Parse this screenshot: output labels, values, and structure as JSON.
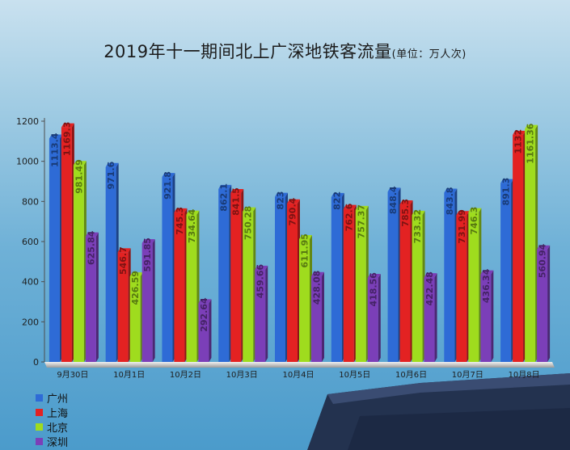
{
  "chart_data": {
    "type": "bar",
    "title": "2019年十一期间北上广深地铁客流量",
    "subtitle": "(单位：万人次)",
    "categories": [
      "9月30日",
      "10月1日",
      "10月2日",
      "10月3日",
      "10月4日",
      "10月5日",
      "10月6日",
      "10月7日",
      "10月8日"
    ],
    "series": [
      {
        "name": "广州",
        "color": "#2e6bd6",
        "values": [
          1113.4,
          971.6,
          921.8,
          862.1,
          823,
          822,
          848.4,
          843.8,
          891.3
        ],
        "labels": [
          "1113.4",
          "971.6",
          "921.8",
          "862.1",
          "823",
          "822",
          "848.4",
          "843.8",
          "891.3"
        ]
      },
      {
        "name": "上海",
        "color": "#e32222",
        "values": [
          1169.3,
          546.7,
          745.3,
          841.5,
          790.4,
          762.6,
          785.3,
          731.99,
          1132
        ],
        "labels": [
          "1169.3",
          "546.7",
          "745.3",
          "841.5",
          "790.4",
          "762.6",
          "785.3",
          "731.99",
          "1132"
        ]
      },
      {
        "name": "北京",
        "color": "#9fdc1e",
        "values": [
          981.49,
          426.59,
          734.64,
          750.28,
          611.95,
          757.37,
          733.32,
          746.3,
          1161.36
        ],
        "labels": [
          "981.49",
          "426.59",
          "734.64",
          "750.28",
          "611.95",
          "757.37",
          "733.32",
          "746.3",
          "1161.36"
        ]
      },
      {
        "name": "深圳",
        "color": "#7b3fb8",
        "values": [
          625.84,
          591.85,
          292.64,
          459.66,
          428.08,
          418.56,
          422.48,
          436.34,
          560.94
        ],
        "labels": [
          "625.84",
          "591.85",
          "292.64",
          "459.66",
          "428.08",
          "418.56",
          "422.48",
          "436.34",
          "560.94"
        ]
      }
    ],
    "yticks": [
      "0",
      "200",
      "400",
      "600",
      "800",
      "1000",
      "1200"
    ],
    "ylim": [
      0,
      1200
    ],
    "grid": false,
    "legend": "bottom-left"
  }
}
